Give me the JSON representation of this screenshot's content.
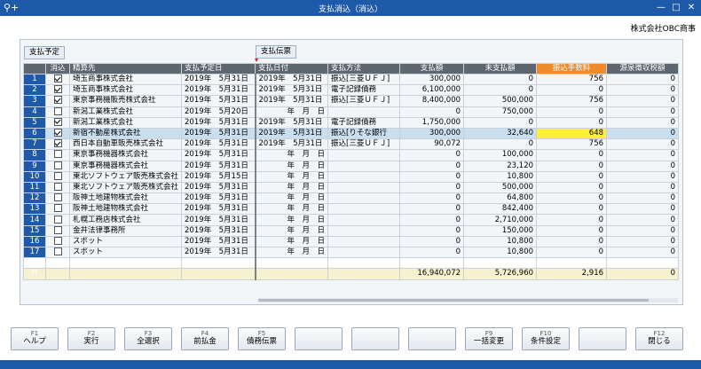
{
  "window": {
    "title": "支払消込（消込）",
    "company": "株式会社OBC商事"
  },
  "section_tabs": {
    "left": "支払予定",
    "right": "支払伝票"
  },
  "colors": {
    "titlebar": "#1e5aa8",
    "header": "#5e6670",
    "fee_header": "#f08a2a",
    "highlight": "#ffef3a",
    "selected_row": "#c9dff0"
  },
  "columns": {
    "check": "消込",
    "payee": "精算先",
    "due_date": "支払予定日",
    "pay_date": "支払日付",
    "method": "支払方法",
    "amount": "支払額",
    "unpaid": "未支払額",
    "fee": "振込手数料",
    "withholding": "源泉徴収税額"
  },
  "rows": [
    {
      "no": "1",
      "checked": true,
      "payee": "埼玉商事株式会社",
      "due": "2019年　5月31日",
      "pay": "2019年　5月31日",
      "method": "振込[三菱ＵＦＪ]",
      "amount": "300,000",
      "unpaid": "0",
      "fee": "756",
      "wh": "0"
    },
    {
      "no": "2",
      "checked": true,
      "payee": "埼玉商事株式会社",
      "due": "2019年　5月31日",
      "pay": "2019年　5月31日",
      "method": "電子記録債務",
      "amount": "6,100,000",
      "unpaid": "0",
      "fee": "0",
      "wh": "0"
    },
    {
      "no": "3",
      "checked": true,
      "payee": "東京事務機販売株式会社",
      "due": "2019年　5月31日",
      "pay": "2019年　5月31日",
      "method": "振込[三菱ＵＦＪ]",
      "amount": "8,400,000",
      "unpaid": "500,000",
      "fee": "756",
      "wh": "0"
    },
    {
      "no": "4",
      "checked": false,
      "payee": "新潟工業株式会社",
      "due": "2019年　5月20日",
      "pay": "年　月　日",
      "method": "",
      "amount": "0",
      "unpaid": "750,000",
      "fee": "0",
      "wh": "0"
    },
    {
      "no": "5",
      "checked": true,
      "payee": "新潟工業株式会社",
      "due": "2019年　5月31日",
      "pay": "2019年　5月31日",
      "method": "電子記録債務",
      "amount": "1,750,000",
      "unpaid": "0",
      "fee": "0",
      "wh": "0"
    },
    {
      "no": "6",
      "checked": true,
      "payee": "新宿不動産株式会社",
      "due": "2019年　5月31日",
      "pay": "2019年　5月31日",
      "method": "振込[りそな銀行",
      "amount": "300,000",
      "unpaid": "32,640",
      "fee": "648",
      "wh": "0",
      "selected": true
    },
    {
      "no": "7",
      "checked": true,
      "payee": "西日本自動車販売株式会社",
      "due": "2019年　5月31日",
      "pay": "2019年　5月31日",
      "method": "振込[三菱ＵＦＪ]",
      "amount": "90,072",
      "unpaid": "0",
      "fee": "756",
      "wh": "0"
    },
    {
      "no": "8",
      "checked": false,
      "payee": "東京事務機器株式会社",
      "due": "2019年　5月31日",
      "pay": "年　月　日",
      "method": "",
      "amount": "0",
      "unpaid": "100,000",
      "fee": "0",
      "wh": "0"
    },
    {
      "no": "9",
      "checked": false,
      "payee": "東京事務機器株式会社",
      "due": "2019年　5月31日",
      "pay": "年　月　日",
      "method": "",
      "amount": "0",
      "unpaid": "23,120",
      "fee": "0",
      "wh": "0"
    },
    {
      "no": "10",
      "checked": false,
      "payee": "東北ソフトウェア販売株式会社",
      "due": "2019年　5月15日",
      "pay": "年　月　日",
      "method": "",
      "amount": "0",
      "unpaid": "10,800",
      "fee": "0",
      "wh": "0"
    },
    {
      "no": "11",
      "checked": false,
      "payee": "東北ソフトウェア販売株式会社",
      "due": "2019年　5月31日",
      "pay": "年　月　日",
      "method": "",
      "amount": "0",
      "unpaid": "500,000",
      "fee": "0",
      "wh": "0"
    },
    {
      "no": "12",
      "checked": false,
      "payee": "阪神土地建物株式会社",
      "due": "2019年　5月31日",
      "pay": "年　月　日",
      "method": "",
      "amount": "0",
      "unpaid": "64,800",
      "fee": "0",
      "wh": "0"
    },
    {
      "no": "13",
      "checked": false,
      "payee": "阪神土地建物株式会社",
      "due": "2019年　5月31日",
      "pay": "年　月　日",
      "method": "",
      "amount": "0",
      "unpaid": "842,400",
      "fee": "0",
      "wh": "0"
    },
    {
      "no": "14",
      "checked": false,
      "payee": "札幌工務店株式会社",
      "due": "2019年　5月31日",
      "pay": "年　月　日",
      "method": "",
      "amount": "0",
      "unpaid": "2,710,000",
      "fee": "0",
      "wh": "0"
    },
    {
      "no": "15",
      "checked": false,
      "payee": "金井法律事務所",
      "due": "2019年　5月31日",
      "pay": "年　月　日",
      "method": "",
      "amount": "0",
      "unpaid": "150,000",
      "fee": "0",
      "wh": "0"
    },
    {
      "no": "16",
      "checked": false,
      "payee": "スポット",
      "due": "2019年　5月31日",
      "pay": "年　月　日",
      "method": "",
      "amount": "0",
      "unpaid": "10,800",
      "fee": "0",
      "wh": "0"
    },
    {
      "no": "17",
      "checked": false,
      "payee": "スポット",
      "due": "2019年　5月31日",
      "pay": "年　月　日",
      "method": "",
      "amount": "0",
      "unpaid": "10,800",
      "fee": "0",
      "wh": "0"
    }
  ],
  "totals": {
    "label": "計",
    "amount": "16,940,072",
    "unpaid": "5,726,960",
    "fee": "2,916",
    "wh": "0"
  },
  "function_keys": [
    {
      "key": "F1",
      "label": "ヘルプ"
    },
    {
      "key": "F2",
      "label": "実行"
    },
    {
      "key": "F3",
      "label": "全選択"
    },
    {
      "key": "F4",
      "label": "前払金"
    },
    {
      "key": "F5",
      "label": "債務伝票"
    },
    {
      "key": "",
      "label": ""
    },
    {
      "key": "",
      "label": ""
    },
    {
      "key": "",
      "label": ""
    },
    {
      "key": "F9",
      "label": "一括変更"
    },
    {
      "key": "F10",
      "label": "条件設定"
    },
    {
      "key": "",
      "label": ""
    },
    {
      "key": "F12",
      "label": "閉じる"
    }
  ]
}
